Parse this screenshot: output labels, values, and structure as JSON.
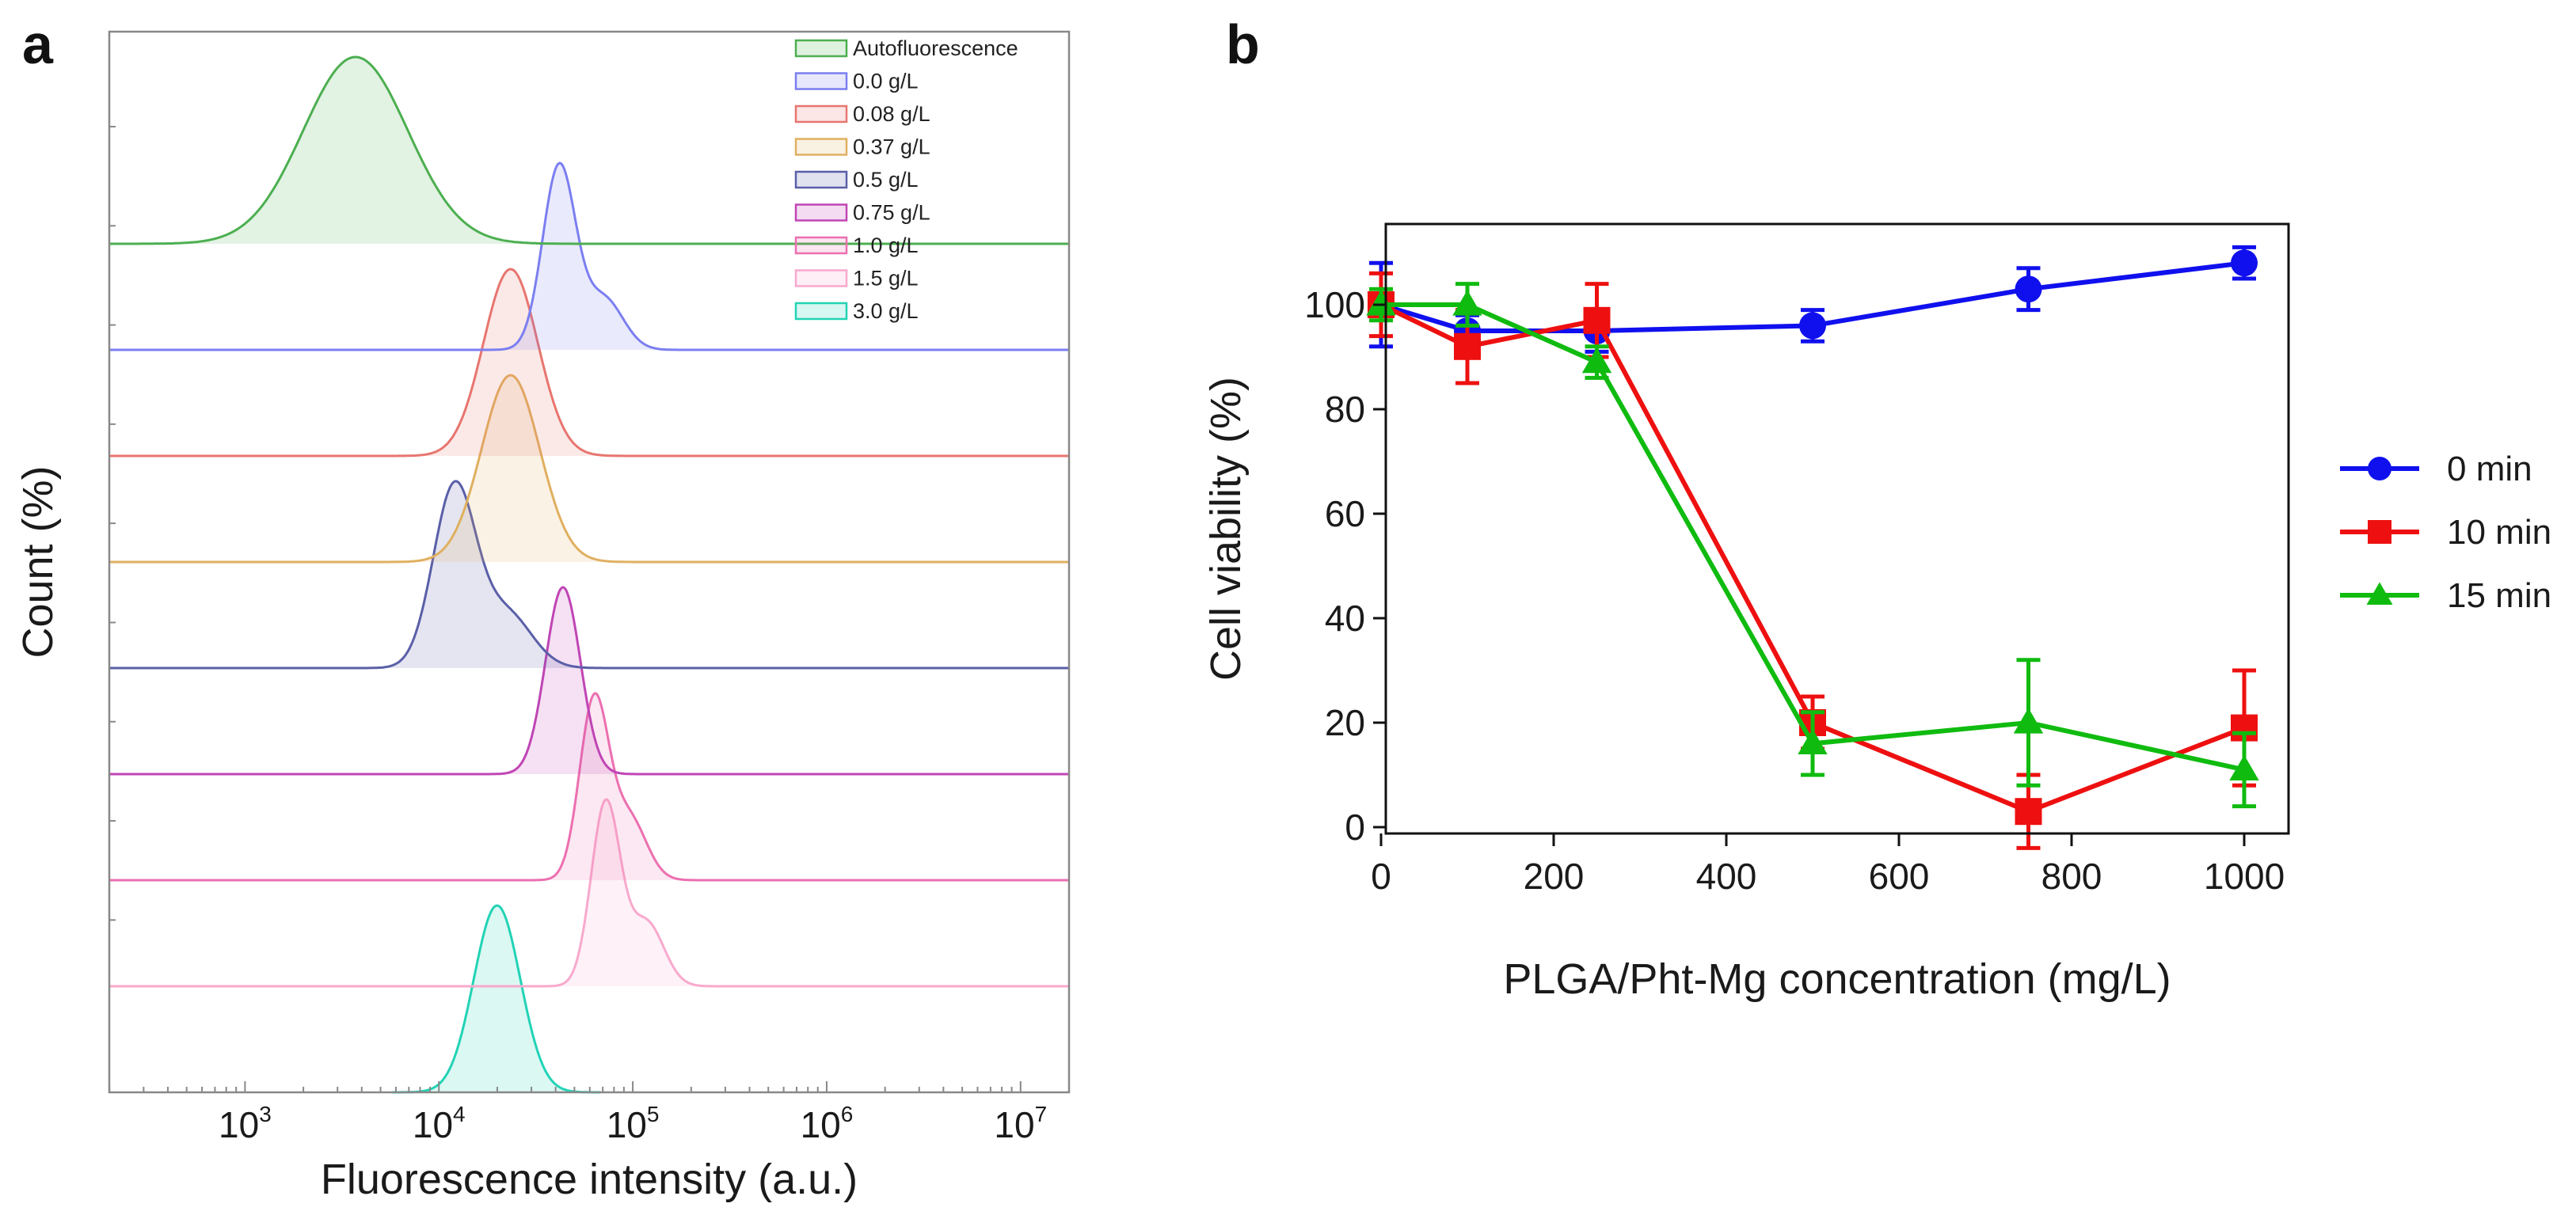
{
  "chart_data": [
    {
      "panel": "a",
      "type": "area",
      "xlabel": "Fluorescence intensity (a.u.)",
      "ylabel": "Count (%)",
      "xscale": "log",
      "xlim_log10": [
        2.3,
        7.25
      ],
      "x_ticks": [
        {
          "base": "10",
          "exp": "3",
          "log10": 3
        },
        {
          "base": "10",
          "exp": "4",
          "log10": 4
        },
        {
          "base": "10",
          "exp": "5",
          "log10": 5
        },
        {
          "base": "10",
          "exp": "6",
          "log10": 6
        },
        {
          "base": "10",
          "exp": "7",
          "log10": 7
        }
      ],
      "legend_position": "top-right",
      "series": [
        {
          "name": "Autofluorescence",
          "color": "#4caf50",
          "peaks": [
            {
              "log10": 3.57,
              "height": 1.0,
              "sigma": 0.27
            }
          ]
        },
        {
          "name": "0.0 g/L",
          "color": "#7b7ff0",
          "peaks": [
            {
              "log10": 4.62,
              "height": 1.0,
              "sigma": 0.085
            },
            {
              "log10": 4.85,
              "height": 0.28,
              "sigma": 0.1
            }
          ]
        },
        {
          "name": "0.08 g/L",
          "color": "#e8756f",
          "peaks": [
            {
              "log10": 4.37,
              "height": 1.0,
              "sigma": 0.14
            }
          ]
        },
        {
          "name": "0.37 g/L",
          "color": "#e0b060",
          "peaks": [
            {
              "log10": 4.37,
              "height": 1.0,
              "sigma": 0.15
            }
          ]
        },
        {
          "name": "0.5 g/L",
          "color": "#5a5fa8",
          "peaks": [
            {
              "log10": 4.08,
              "height": 1.0,
              "sigma": 0.11
            },
            {
              "log10": 4.35,
              "height": 0.3,
              "sigma": 0.13
            }
          ]
        },
        {
          "name": "0.75 g/L",
          "color": "#c045b5",
          "peaks": [
            {
              "log10": 4.64,
              "height": 1.0,
              "sigma": 0.09
            }
          ]
        },
        {
          "name": "1.0 g/L",
          "color": "#ec6fb0",
          "peaks": [
            {
              "log10": 4.8,
              "height": 1.0,
              "sigma": 0.075
            },
            {
              "log10": 4.98,
              "height": 0.35,
              "sigma": 0.09
            }
          ]
        },
        {
          "name": "1.5 g/L",
          "color": "#f8a9cd",
          "peaks": [
            {
              "log10": 4.86,
              "height": 1.0,
              "sigma": 0.075
            },
            {
              "log10": 5.07,
              "height": 0.35,
              "sigma": 0.09
            }
          ]
        },
        {
          "name": "3.0 g/L",
          "color": "#22d3b5",
          "peaks": [
            {
              "log10": 4.3,
              "height": 1.0,
              "sigma": 0.12
            }
          ]
        }
      ]
    },
    {
      "panel": "b",
      "type": "line",
      "xlabel": "PLGA/Pht-Mg concentration (mg/L)",
      "ylabel": "Cell viability (%)",
      "xlim": [
        0,
        1000
      ],
      "ylim": [
        0,
        110
      ],
      "x_ticks": [
        0,
        200,
        400,
        600,
        800,
        1000
      ],
      "y_ticks": [
        0,
        20,
        40,
        60,
        80,
        100
      ],
      "x": [
        0,
        100,
        250,
        500,
        750,
        1000
      ],
      "legend_position": "right",
      "series": [
        {
          "name": "0 min",
          "color": "#1010ee",
          "marker": "circle",
          "values": [
            100,
            95,
            95,
            96,
            103,
            108
          ],
          "errors": [
            8,
            3,
            4,
            3,
            4,
            3
          ]
        },
        {
          "name": "10 min",
          "color": "#ee1010",
          "marker": "square",
          "values": [
            100,
            92,
            97,
            20,
            3,
            19
          ],
          "errors": [
            6,
            7,
            7,
            5,
            7,
            11
          ]
        },
        {
          "name": "15 min",
          "color": "#10bb10",
          "marker": "triangle",
          "values": [
            100,
            100,
            89,
            16,
            20,
            11
          ],
          "errors": [
            3,
            4,
            3,
            6,
            12,
            7
          ]
        }
      ]
    }
  ],
  "panel_a_label": "a",
  "panel_b_label": "b"
}
